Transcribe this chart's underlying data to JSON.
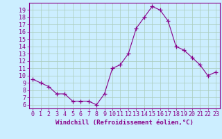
{
  "x": [
    0,
    1,
    2,
    3,
    4,
    5,
    6,
    7,
    8,
    9,
    10,
    11,
    12,
    13,
    14,
    15,
    16,
    17,
    18,
    19,
    20,
    21,
    22,
    23
  ],
  "y": [
    9.5,
    9.0,
    8.5,
    7.5,
    7.5,
    6.5,
    6.5,
    6.5,
    6.0,
    7.5,
    11.0,
    11.5,
    13.0,
    16.5,
    18.0,
    19.5,
    19.0,
    17.5,
    14.0,
    13.5,
    12.5,
    11.5,
    10.0,
    10.5
  ],
  "line_color": "#880088",
  "marker": "+",
  "marker_size": 4,
  "bg_color": "#cceeff",
  "grid_color": "#aaccbb",
  "xlabel": "Windchill (Refroidissement éolien,°C)",
  "xlim": [
    -0.5,
    23.5
  ],
  "ylim": [
    5.5,
    20.0
  ],
  "yticks": [
    6,
    7,
    8,
    9,
    10,
    11,
    12,
    13,
    14,
    15,
    16,
    17,
    18,
    19
  ],
  "xticks": [
    0,
    1,
    2,
    3,
    4,
    5,
    6,
    7,
    8,
    9,
    10,
    11,
    12,
    13,
    14,
    15,
    16,
    17,
    18,
    19,
    20,
    21,
    22,
    23
  ],
  "tick_color": "#880088",
  "label_color": "#880088",
  "spine_color": "#880088",
  "xlabel_fontsize": 6.5,
  "tick_fontsize": 6.0
}
